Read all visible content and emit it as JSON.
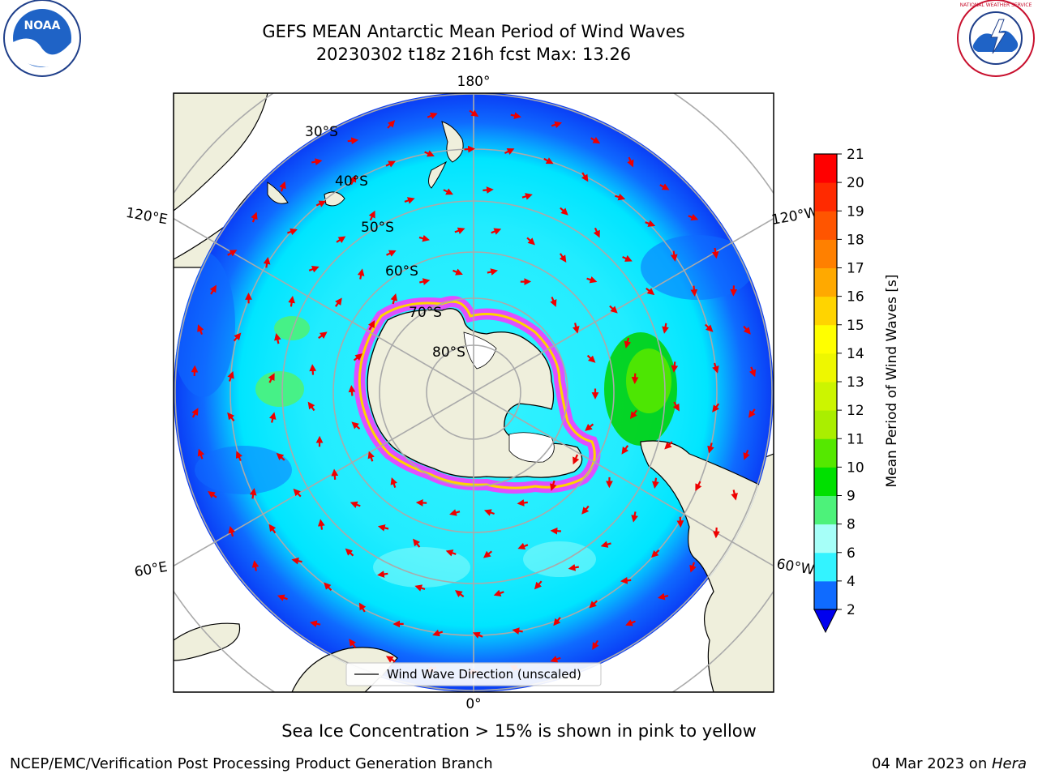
{
  "header": {
    "title_line1": "GEFS MEAN Antarctic Mean Period of Wind Waves",
    "title_line2": "20230302 t18z 216h fcst   Max: 13.26",
    "logo_left_text": "NOAA",
    "logo_right_text": "NATIONAL WEATHER SERVICE"
  },
  "map": {
    "projection": "south-polar-stereographic",
    "meridian_labels": {
      "top": "180°",
      "bottom": "0°",
      "upper_left": "120°E",
      "lower_left": "60°E",
      "upper_right": "120°W",
      "lower_right": "60°W"
    },
    "latitude_labels": [
      "30°S",
      "40°S",
      "50°S",
      "60°S",
      "70°S",
      "80°S"
    ],
    "legend_label": "Wind Wave Direction (unscaled)"
  },
  "colorbar": {
    "label": "Mean Period of Wind Waves [s]",
    "ticks": [
      "2",
      "4",
      "6",
      "8",
      "9",
      "10",
      "11",
      "12",
      "13",
      "14",
      "15",
      "16",
      "17",
      "18",
      "19",
      "20",
      "21"
    ],
    "colors": [
      "#0f6bff",
      "#00e5ff",
      "#33f3ff",
      "#a6fff8",
      "#4df27a",
      "#00e000",
      "#55e800",
      "#aaee00",
      "#ccf500",
      "#eef700",
      "#ffff00",
      "#ffd400",
      "#ffa900",
      "#ff8000",
      "#ff5500",
      "#ff2a00",
      "#ff0000"
    ],
    "extend_color": "#0000ee"
  },
  "notes": {
    "sea_ice": "Sea Ice Concentration > 15% is shown in pink to yellow"
  },
  "footer": {
    "left": "NCEP/EMC/Verification Post Processing Product Generation Branch",
    "right_prefix": "04 Mar 2023 on ",
    "right_machine": "Hera"
  }
}
